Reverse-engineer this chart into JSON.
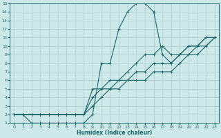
{
  "xlabel": "Humidex (Indice chaleur)",
  "ylabel": "",
  "bg_color": "#cce8e8",
  "grid_color": "#aacccc",
  "line_color": "#1a6666",
  "xlim": [
    -0.5,
    23.5
  ],
  "ylim": [
    1,
    15
  ],
  "xticks": [
    0,
    1,
    2,
    3,
    4,
    5,
    6,
    7,
    8,
    9,
    10,
    11,
    12,
    13,
    14,
    15,
    16,
    17,
    18,
    19,
    20,
    21,
    22,
    23
  ],
  "yticks": [
    1,
    2,
    3,
    4,
    5,
    6,
    7,
    8,
    9,
    10,
    11,
    12,
    13,
    14,
    15
  ],
  "lines": [
    {
      "x": [
        0,
        1,
        2,
        3,
        4,
        5,
        6,
        7,
        8,
        9,
        10,
        11,
        12,
        13,
        14,
        15,
        16,
        17,
        18,
        19,
        20,
        21,
        22,
        23
      ],
      "y": [
        2,
        2,
        1,
        1,
        1,
        1,
        1,
        1,
        1,
        2,
        8,
        8,
        12,
        14,
        15,
        15,
        14,
        9,
        8,
        9,
        10,
        10,
        11,
        11
      ]
    },
    {
      "x": [
        0,
        1,
        2,
        3,
        4,
        5,
        6,
        7,
        8,
        9,
        10,
        11,
        12,
        13,
        14,
        15,
        16,
        17,
        18,
        19,
        20,
        21,
        22,
        23
      ],
      "y": [
        2,
        2,
        2,
        2,
        2,
        2,
        2,
        2,
        2,
        5,
        5,
        6,
        6,
        7,
        8,
        9,
        9,
        10,
        9,
        9,
        10,
        10,
        11,
        11
      ]
    },
    {
      "x": [
        0,
        1,
        2,
        3,
        4,
        5,
        6,
        7,
        8,
        9,
        10,
        11,
        12,
        13,
        14,
        15,
        16,
        17,
        18,
        19,
        20,
        21,
        22,
        23
      ],
      "y": [
        2,
        2,
        2,
        2,
        2,
        2,
        2,
        2,
        2,
        4,
        5,
        5,
        6,
        6,
        7,
        7,
        8,
        8,
        8,
        9,
        9,
        10,
        10,
        11
      ]
    },
    {
      "x": [
        0,
        1,
        2,
        3,
        4,
        5,
        6,
        7,
        8,
        9,
        10,
        11,
        12,
        13,
        14,
        15,
        16,
        17,
        18,
        19,
        20,
        21,
        22,
        23
      ],
      "y": [
        2,
        2,
        2,
        2,
        2,
        2,
        2,
        2,
        2,
        3,
        4,
        5,
        5,
        6,
        6,
        6,
        7,
        7,
        7,
        8,
        9,
        9,
        10,
        11
      ]
    }
  ]
}
